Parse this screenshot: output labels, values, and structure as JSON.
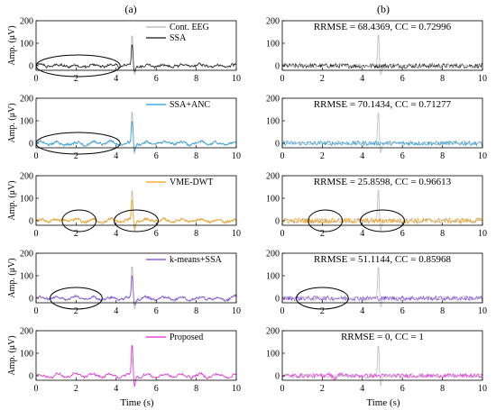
{
  "figure": {
    "panel_labels": [
      "(a)",
      "(b)"
    ],
    "y_axis_label": "Amp. (μV)",
    "x_axis_label": "Time (s)"
  },
  "chart_data": [
    {
      "type": "line",
      "column": "a",
      "row": 1,
      "title": "",
      "xlabel": "",
      "ylabel": "Amp. (μV)",
      "xlim": [
        0,
        10
      ],
      "ylim": [
        -20,
        200
      ],
      "xticks": [
        "0",
        "2",
        "4",
        "6",
        "8",
        "10"
      ],
      "yticks": [
        "0",
        "100",
        "200"
      ],
      "legend": {
        "placement": "top-right",
        "entries": [
          "Cont. EEG",
          "SSA"
        ]
      },
      "series": [
        {
          "name": "Cont. EEG",
          "color": "#b3b3b3",
          "description": "contaminated EEG with spike artifact near t=4.8 s"
        },
        {
          "name": "SSA",
          "color": "#111111"
        }
      ],
      "annotations": [
        {
          "shape": "ellipse",
          "x_range": [
            0,
            4.2
          ]
        }
      ]
    },
    {
      "type": "line",
      "column": "b",
      "row": 1,
      "title": "RRMSE = 68.4369, CC = 0.72996",
      "xlim": [
        0,
        10
      ],
      "ylim": [
        -20,
        200
      ],
      "xticks": [
        "0",
        "2",
        "4",
        "6",
        "8",
        "10"
      ],
      "yticks": [
        "0",
        "100",
        "200"
      ],
      "series": [
        {
          "color": "#111111"
        },
        {
          "color": "#b3b3b3"
        }
      ]
    },
    {
      "type": "line",
      "column": "a",
      "row": 2,
      "ylabel": "Amp. (μV)",
      "xlim": [
        0,
        10
      ],
      "ylim": [
        -20,
        200
      ],
      "xticks": [
        "0",
        "2",
        "4",
        "6",
        "8",
        "10"
      ],
      "yticks": [
        "0",
        "100",
        "200"
      ],
      "legend": {
        "placement": "top-right",
        "entries": [
          "SSA+ANC"
        ]
      },
      "series": [
        {
          "color": "#b3b3b3"
        },
        {
          "name": "SSA+ANC",
          "color": "#1b9ee6"
        }
      ],
      "annotations": [
        {
          "shape": "ellipse",
          "x_range": [
            0,
            4.2
          ]
        }
      ]
    },
    {
      "type": "line",
      "column": "b",
      "row": 2,
      "title": "RRMSE = 70.1434, CC = 0.71277",
      "xlim": [
        0,
        10
      ],
      "ylim": [
        -20,
        200
      ],
      "xticks": [
        "0",
        "2",
        "4",
        "6",
        "8",
        "10"
      ],
      "yticks": [
        "0",
        "100",
        "200"
      ],
      "series": [
        {
          "color": "#1b9ee6"
        },
        {
          "color": "#b3b3b3"
        }
      ]
    },
    {
      "type": "line",
      "column": "a",
      "row": 3,
      "ylabel": "Amp. (μV)",
      "xlim": [
        0,
        10
      ],
      "ylim": [
        -20,
        200
      ],
      "xticks": [
        "0",
        "2",
        "4",
        "6",
        "8",
        "10"
      ],
      "yticks": [
        "0",
        "100",
        "200"
      ],
      "legend": {
        "placement": "top-right",
        "entries": [
          "VME-DWT"
        ]
      },
      "series": [
        {
          "color": "#c8b89a"
        },
        {
          "name": "VME-DWT",
          "color": "#f59e0b"
        }
      ],
      "annotations": [
        {
          "shape": "ellipse",
          "x_range": [
            1.3,
            3.0
          ]
        },
        {
          "shape": "ellipse",
          "x_range": [
            3.9,
            6.1
          ]
        }
      ]
    },
    {
      "type": "line",
      "column": "b",
      "row": 3,
      "title": "RRMSE = 25.8598, CC = 0.96613",
      "xlim": [
        0,
        10
      ],
      "ylim": [
        -20,
        200
      ],
      "xticks": [
        "0",
        "2",
        "4",
        "6",
        "8",
        "10"
      ],
      "yticks": [
        "0",
        "100",
        "200"
      ],
      "series": [
        {
          "color": "#f59e0b"
        },
        {
          "color": "#b3b3b3"
        }
      ],
      "annotations": [
        {
          "shape": "ellipse",
          "x_range": [
            1.3,
            3.0
          ]
        },
        {
          "shape": "ellipse",
          "x_range": [
            3.9,
            6.1
          ]
        }
      ]
    },
    {
      "type": "line",
      "column": "a",
      "row": 4,
      "ylabel": "Amp. (μV)",
      "xlim": [
        0,
        10
      ],
      "ylim": [
        -20,
        200
      ],
      "xticks": [
        "0",
        "2",
        "4",
        "6",
        "8",
        "10"
      ],
      "yticks": [
        "0",
        "100",
        "200"
      ],
      "legend": {
        "placement": "top-right",
        "entries": [
          "k-means+SSA"
        ]
      },
      "series": [
        {
          "color": "#b3b3b3"
        },
        {
          "name": "k-means+SSA",
          "color": "#7b3fe4"
        }
      ],
      "annotations": [
        {
          "shape": "ellipse",
          "x_range": [
            0.7,
            3.3
          ]
        }
      ]
    },
    {
      "type": "line",
      "column": "b",
      "row": 4,
      "title": "RRMSE = 51.1144, CC = 0.85968",
      "xlim": [
        0,
        10
      ],
      "ylim": [
        -20,
        200
      ],
      "xticks": [
        "0",
        "2",
        "4",
        "6",
        "8",
        "10"
      ],
      "yticks": [
        "0",
        "100",
        "200"
      ],
      "series": [
        {
          "color": "#7b3fe4"
        },
        {
          "color": "#b3b3b3"
        }
      ],
      "annotations": [
        {
          "shape": "ellipse",
          "x_range": [
            0.7,
            3.3
          ]
        }
      ]
    },
    {
      "type": "line",
      "column": "a",
      "row": 5,
      "ylabel": "Amp. (μV)",
      "xlabel": "Time (s)",
      "xlim": [
        0,
        10
      ],
      "ylim": [
        -20,
        200
      ],
      "xticks": [
        "0",
        "2",
        "4",
        "6",
        "8",
        "10"
      ],
      "yticks": [
        "0",
        "100",
        "200"
      ],
      "legend": {
        "placement": "top-right",
        "entries": [
          "Proposed"
        ]
      },
      "series": [
        {
          "color": "#b3b3b3"
        },
        {
          "name": "Proposed",
          "color": "#ee1ee0"
        }
      ]
    },
    {
      "type": "line",
      "column": "b",
      "row": 5,
      "title": "RRMSE = 0, CC = 1",
      "xlabel": "Time (s)",
      "xlim": [
        0,
        10
      ],
      "ylim": [
        -20,
        200
      ],
      "xticks": [
        "0",
        "2",
        "4",
        "6",
        "8",
        "10"
      ],
      "yticks": [
        "0",
        "100",
        "200"
      ],
      "series": [
        {
          "color": "#ee1ee0"
        },
        {
          "color": "#b3b3b3"
        }
      ]
    }
  ]
}
